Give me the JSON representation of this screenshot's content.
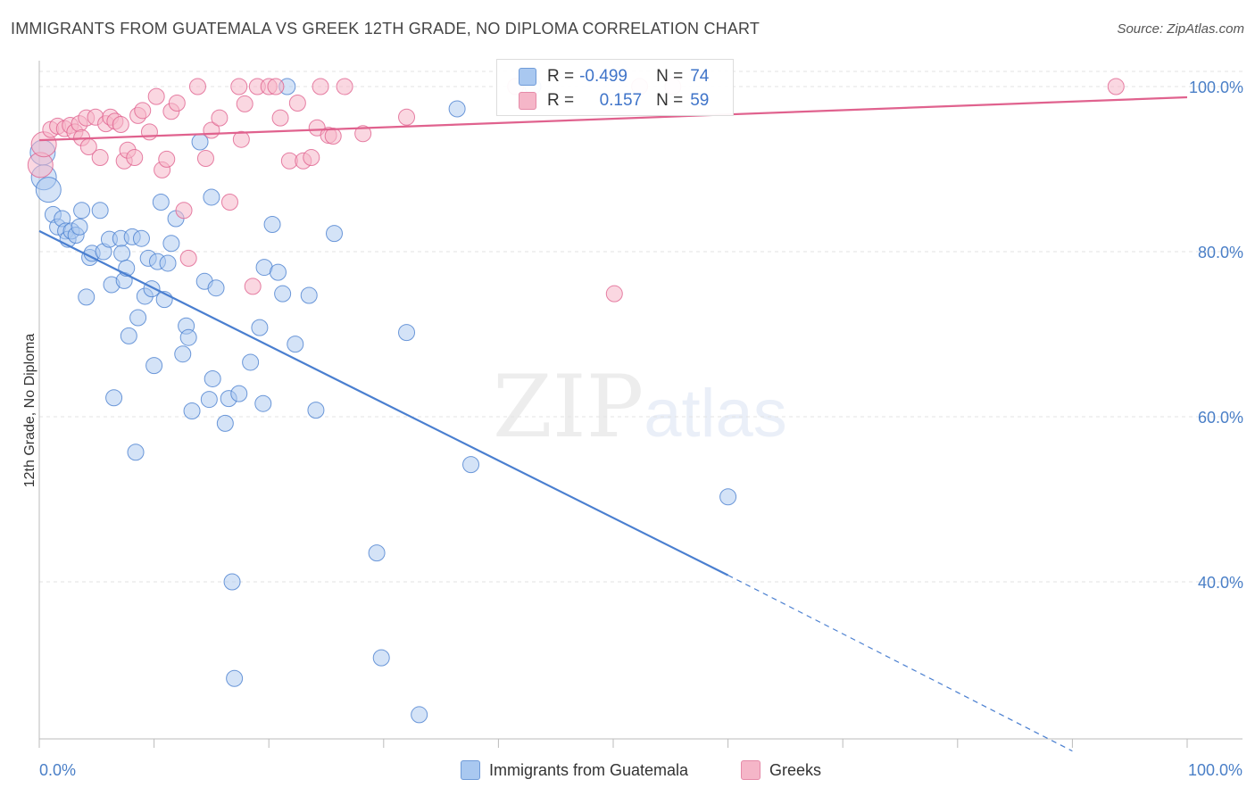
{
  "header": {
    "title": "IMMIGRANTS FROM GUATEMALA VS GREEK 12TH GRADE, NO DIPLOMA CORRELATION CHART",
    "source": "Source: ZipAtlas.com"
  },
  "watermark": {
    "zip": "ZIP",
    "atlas": "atlas"
  },
  "legend_box": {
    "rows": [
      {
        "r_label": "R =",
        "r_value": "-0.499",
        "n_label": "N =",
        "n_value": "74",
        "color": "#a9c8f0"
      },
      {
        "r_label": "R =",
        "r_value": "0.157",
        "n_label": "N =",
        "n_value": "59",
        "color": "#f5b6c8"
      }
    ]
  },
  "bottom_legend": {
    "items": [
      {
        "label": "Immigrants from Guatemala",
        "color": "#a9c8f0"
      },
      {
        "label": "Greeks",
        "color": "#f5b6c8"
      }
    ]
  },
  "chart_data": {
    "type": "scatter",
    "title": "IMMIGRANTS FROM GUATEMALA VS GREEK 12TH GRADE, NO DIPLOMA CORRELATION CHART",
    "xlabel": "",
    "ylabel": "12th Grade, No Diploma",
    "xlim": [
      0,
      100
    ],
    "ylim": [
      20,
      102
    ],
    "x_tick_labels": [
      {
        "value": 0,
        "label": "0.0%"
      },
      {
        "value": 100,
        "label": "100.0%"
      }
    ],
    "y_tick_labels": [
      {
        "value": 100,
        "label": "100.0%"
      },
      {
        "value": 80,
        "label": "80.0%"
      },
      {
        "value": 60,
        "label": "60.0%"
      },
      {
        "value": 40,
        "label": "40.0%"
      }
    ],
    "grid": true,
    "legend_position": "bottom",
    "series": [
      {
        "name": "Immigrants from Guatemala",
        "color": "#4a7fd0",
        "fill": "#a9c8f0",
        "trend": {
          "x": [
            0,
            60
          ],
          "y": [
            82.5,
            40.8
          ],
          "dashed_to": [
            90,
            19.5
          ]
        },
        "points": [
          [
            0.3,
            92
          ],
          [
            0.4,
            89
          ],
          [
            0.8,
            87.5
          ],
          [
            1.2,
            84.5
          ],
          [
            1.6,
            83
          ],
          [
            2.0,
            84
          ],
          [
            2.3,
            82.5
          ],
          [
            2.5,
            81.5
          ],
          [
            2.8,
            82.5
          ],
          [
            3.2,
            82
          ],
          [
            3.5,
            83
          ],
          [
            3.7,
            85
          ],
          [
            4.1,
            74.5
          ],
          [
            4.4,
            79.3
          ],
          [
            4.6,
            79.8
          ],
          [
            5.3,
            85
          ],
          [
            5.6,
            80
          ],
          [
            6.1,
            81.5
          ],
          [
            6.3,
            76
          ],
          [
            6.5,
            62.3
          ],
          [
            7.1,
            81.6
          ],
          [
            7.2,
            79.8
          ],
          [
            7.4,
            76.5
          ],
          [
            7.6,
            78
          ],
          [
            7.8,
            69.8
          ],
          [
            8.1,
            81.8
          ],
          [
            8.4,
            55.7
          ],
          [
            8.6,
            72
          ],
          [
            8.9,
            81.6
          ],
          [
            9.2,
            74.6
          ],
          [
            9.5,
            79.2
          ],
          [
            9.8,
            75.5
          ],
          [
            10.0,
            66.2
          ],
          [
            10.3,
            78.8
          ],
          [
            10.6,
            86
          ],
          [
            10.9,
            74.2
          ],
          [
            11.2,
            78.6
          ],
          [
            11.5,
            81
          ],
          [
            11.9,
            84
          ],
          [
            12.5,
            67.6
          ],
          [
            12.8,
            71
          ],
          [
            13.0,
            69.6
          ],
          [
            13.3,
            60.7
          ],
          [
            14.0,
            93.3
          ],
          [
            14.4,
            76.4
          ],
          [
            14.8,
            62.1
          ],
          [
            15.0,
            86.6
          ],
          [
            15.1,
            64.6
          ],
          [
            15.4,
            75.6
          ],
          [
            16.2,
            59.2
          ],
          [
            16.5,
            62.2
          ],
          [
            16.8,
            40
          ],
          [
            17.0,
            28.3
          ],
          [
            17.4,
            62.8
          ],
          [
            18.4,
            66.6
          ],
          [
            19.2,
            70.8
          ],
          [
            19.5,
            61.6
          ],
          [
            19.6,
            78.1
          ],
          [
            20.3,
            83.3
          ],
          [
            20.8,
            77.5
          ],
          [
            21.2,
            74.9
          ],
          [
            21.6,
            100
          ],
          [
            22.3,
            68.8
          ],
          [
            23.5,
            74.7
          ],
          [
            24.1,
            60.8
          ],
          [
            25.7,
            82.2
          ],
          [
            29.4,
            43.5
          ],
          [
            29.8,
            30.8
          ],
          [
            32.0,
            70.2
          ],
          [
            33.1,
            23.9
          ],
          [
            36.4,
            97.3
          ],
          [
            37.6,
            54.2
          ],
          [
            43.0,
            100
          ],
          [
            60.0,
            50.3
          ]
        ]
      },
      {
        "name": "Greeks",
        "color": "#e0628e",
        "fill": "#f5b6c8",
        "trend": {
          "x": [
            0,
            100
          ],
          "y": [
            93.5,
            98.7
          ]
        },
        "points": [
          [
            0.1,
            90.5
          ],
          [
            0.4,
            93
          ],
          [
            1.0,
            94.8
          ],
          [
            1.6,
            95.2
          ],
          [
            2.2,
            94.9
          ],
          [
            2.7,
            95.3
          ],
          [
            3.1,
            94.5
          ],
          [
            3.5,
            95.5
          ],
          [
            3.7,
            93.8
          ],
          [
            4.1,
            96.2
          ],
          [
            4.3,
            92.7
          ],
          [
            4.9,
            96.3
          ],
          [
            5.3,
            91.4
          ],
          [
            5.8,
            95.5
          ],
          [
            6.2,
            96.3
          ],
          [
            6.6,
            95.8
          ],
          [
            7.1,
            95.4
          ],
          [
            7.4,
            91
          ],
          [
            7.7,
            92.3
          ],
          [
            8.3,
            91.4
          ],
          [
            8.6,
            96.5
          ],
          [
            9.0,
            97.1
          ],
          [
            9.6,
            94.5
          ],
          [
            10.2,
            98.8
          ],
          [
            10.7,
            89.9
          ],
          [
            11.1,
            91.2
          ],
          [
            11.5,
            97
          ],
          [
            12.0,
            98
          ],
          [
            12.6,
            85
          ],
          [
            13.0,
            79.2
          ],
          [
            13.8,
            100
          ],
          [
            14.5,
            91.3
          ],
          [
            15.0,
            94.7
          ],
          [
            15.7,
            96.2
          ],
          [
            16.6,
            86
          ],
          [
            17.4,
            100
          ],
          [
            17.6,
            93.6
          ],
          [
            17.9,
            97.9
          ],
          [
            18.6,
            75.8
          ],
          [
            19.0,
            100
          ],
          [
            20.0,
            100
          ],
          [
            20.6,
            100
          ],
          [
            21.0,
            96.2
          ],
          [
            21.8,
            91
          ],
          [
            22.5,
            98
          ],
          [
            23.0,
            91
          ],
          [
            23.7,
            91.4
          ],
          [
            24.2,
            95
          ],
          [
            24.5,
            100
          ],
          [
            25.2,
            94.1
          ],
          [
            25.6,
            94
          ],
          [
            26.6,
            100
          ],
          [
            28.2,
            94.3
          ],
          [
            32.0,
            96.3
          ],
          [
            41.5,
            100
          ],
          [
            50.1,
            74.9
          ],
          [
            52.3,
            100
          ],
          [
            55.2,
            100
          ],
          [
            93.8,
            100
          ]
        ]
      }
    ]
  }
}
